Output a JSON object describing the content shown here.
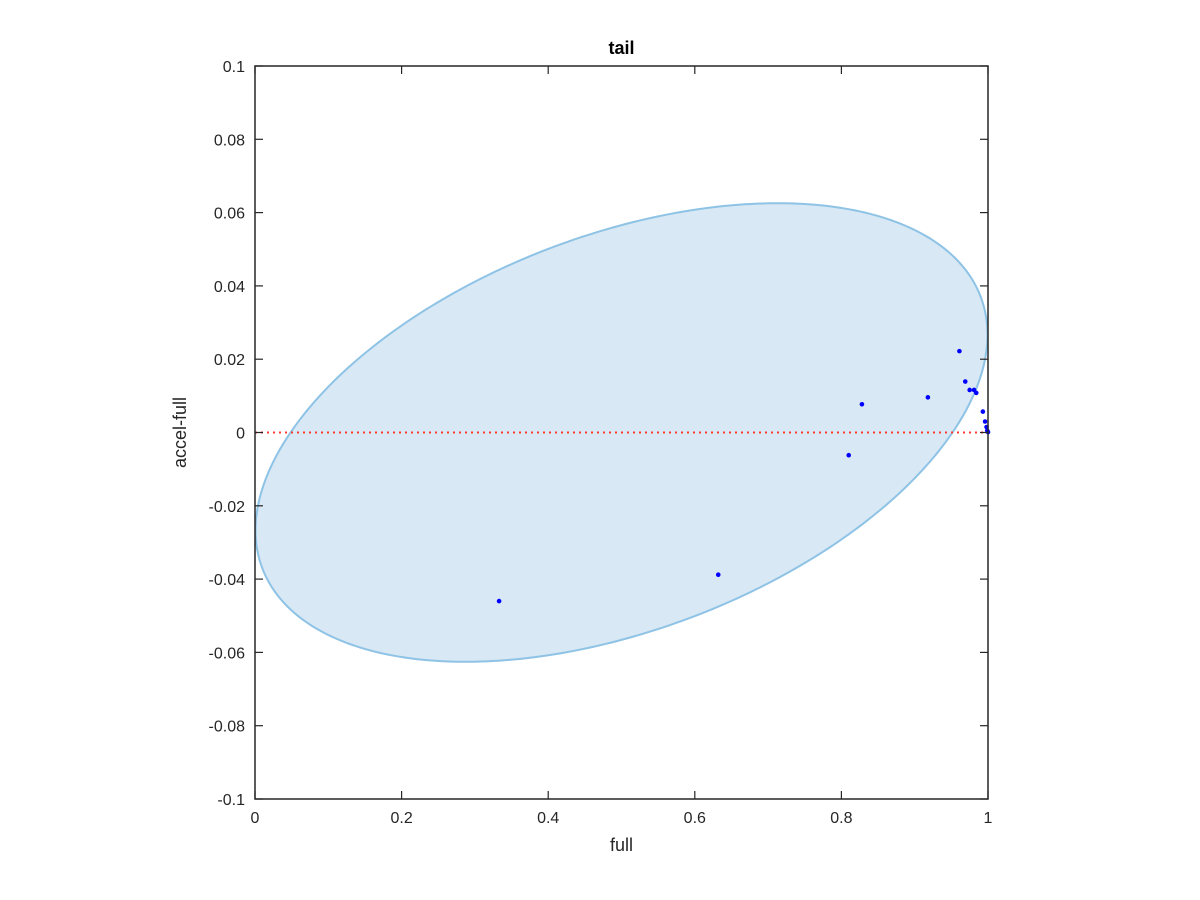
{
  "chart_data": {
    "type": "scatter",
    "title": "tail",
    "xlabel": "full",
    "ylabel": "accel-full",
    "xlim": [
      0,
      1
    ],
    "ylim": [
      -0.1,
      0.1
    ],
    "xticks": [
      0,
      0.2,
      0.4,
      0.6,
      0.8,
      1
    ],
    "xtick_labels": [
      "0",
      "0.2",
      "0.4",
      "0.6",
      "0.8",
      "1"
    ],
    "yticks": [
      -0.1,
      -0.08,
      -0.06,
      -0.04,
      -0.02,
      0,
      0.02,
      0.04,
      0.06,
      0.08,
      0.1
    ],
    "ytick_labels": [
      "-0.1",
      "-0.08",
      "-0.06",
      "-0.04",
      "-0.02",
      "0",
      "0.02",
      "0.04",
      "0.06",
      "0.08",
      "0.1"
    ],
    "grid": false,
    "points": [
      {
        "x": 0.333,
        "y": -0.046
      },
      {
        "x": 0.632,
        "y": -0.0388
      },
      {
        "x": 0.81,
        "y": -0.0062
      },
      {
        "x": 0.828,
        "y": 0.0077
      },
      {
        "x": 0.918,
        "y": 0.0096
      },
      {
        "x": 0.961,
        "y": 0.0222
      },
      {
        "x": 0.969,
        "y": 0.0139
      },
      {
        "x": 0.975,
        "y": 0.0116
      },
      {
        "x": 0.981,
        "y": 0.0116
      },
      {
        "x": 0.984,
        "y": 0.0108
      },
      {
        "x": 0.993,
        "y": 0.0057
      },
      {
        "x": 0.996,
        "y": 0.003
      },
      {
        "x": 0.998,
        "y": 0.0015
      },
      {
        "x": 0.999,
        "y": 0.0005
      },
      {
        "x": 1.0,
        "y": 0.0001
      }
    ],
    "ellipse": {
      "center_x": 0.5,
      "center_y": 0.0,
      "semi_axis_x": 0.5,
      "semi_axis_y": 0.0565,
      "rotation_deg": 3.1
    },
    "reference_line": {
      "y": 0,
      "style": "dotted"
    },
    "colors": {
      "points": "#0000ff",
      "ellipse_fill": "#d8e8f4",
      "ellipse_edge": "#8ec3e6",
      "reference_line": "#ff3b30",
      "axes": "#262626"
    }
  }
}
